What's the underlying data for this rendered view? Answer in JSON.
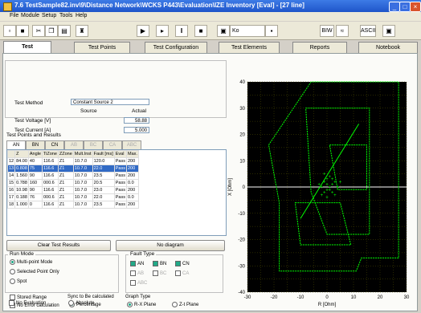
{
  "window": {
    "title": "7.6 TestSample82.inv\\9\\Distance Network\\WCKS P443\\Evaluation\\IZE Inventory [Eval] - [27 line]"
  },
  "menu": [
    "File",
    "Module",
    "Setup",
    "Tools",
    "Help"
  ],
  "toolbar": {
    "combo_value": "Ko",
    "mode_text": "BIW",
    "ascii_text": "ASCII"
  },
  "tabs": [
    "Test",
    "Test Points",
    "Test Configuration",
    "Test Elements",
    "Reports",
    "Notebook"
  ],
  "test_method": {
    "label": "Test Method",
    "value": "Constant Source 2",
    "col_source": "Source",
    "col_actual": "Actual"
  },
  "fields": [
    {
      "label": "Test Voltage [V]",
      "value": "58.88"
    },
    {
      "label": "Test Current [A]",
      "value": "5.000"
    }
  ],
  "points": {
    "group_title": "Test Points and Results",
    "tabs": [
      "AN",
      "BN",
      "CN",
      "AB",
      "BC",
      "CA",
      "ABC"
    ],
    "columns": [
      "",
      "Z",
      "Angle",
      "TiZone",
      "ZZone",
      "Mult.Inst",
      "Fault [ms]",
      "Eval",
      "Max."
    ],
    "rows": [
      [
        "12",
        "84.00",
        "40",
        "116.6",
        "Z1",
        "10.7.0",
        "120.0",
        "Pass",
        "200"
      ],
      [
        "13",
        "0.808",
        "75",
        "116.6",
        "Z1",
        "10.7.0",
        "22.0",
        "Pass",
        "200"
      ],
      [
        "14",
        "1.560",
        "90",
        "116.6",
        "Z1",
        "10.7.0",
        "23.5",
        "Pass",
        "200"
      ],
      [
        "15",
        "0.788",
        "160",
        "000.6",
        "Z1",
        "10.7.0",
        "20.5",
        "Pass",
        "0.0"
      ],
      [
        "16",
        "10.98",
        "90",
        "116.6",
        "Z1",
        "10.7.0",
        "23.0",
        "Pass",
        "200"
      ],
      [
        "17",
        "0.188",
        "76",
        "000.6",
        "Z1",
        "10.7.0",
        "22.0",
        "Pass",
        "0.0"
      ],
      [
        "18",
        "1.000",
        "0",
        "116.6",
        "Z1",
        "10.7.0",
        "23.5",
        "Pass",
        "200"
      ]
    ],
    "selected_row": 1
  },
  "buttons": {
    "clear": "Clear Test Results",
    "no_diagram": "No diagram"
  },
  "run_mode": {
    "title": "Run Mode",
    "options": [
      "Multi-point Mode",
      "Selected Point Only",
      "Spot"
    ],
    "selected": 0
  },
  "fault_type": {
    "title": "Fault Type",
    "options": [
      "AN",
      "BN",
      "CN",
      "AB",
      "BC",
      "CA",
      "ABC"
    ]
  },
  "checks": [
    "Stored Range",
    "No Error calculation",
    "No Evaluation"
  ],
  "z_calc": {
    "title": "Sync to Be calculated",
    "options": [
      "Percentage",
      "Absolute"
    ]
  },
  "graph_type": {
    "title": "Graph Type",
    "options": [
      "R-X Plane",
      "Z-t Plane"
    ]
  },
  "chart_data": {
    "type": "scatter",
    "xlabel": "R [Ohm]",
    "ylabel": "X [Ohm]",
    "xlim": [
      -30,
      30
    ],
    "ylim": [
      -40,
      40
    ],
    "xticks": [
      "-30",
      "-20",
      "-10",
      "0",
      "10",
      "20",
      "30"
    ],
    "yticks": [
      "40",
      "30",
      "20",
      "10",
      "0",
      "-10",
      "-20",
      "-30",
      "-40"
    ],
    "grid": true,
    "zones": [
      {
        "name": "zone-outer",
        "points": [
          [
            -22,
            16
          ],
          [
            -6,
            40
          ],
          [
            27,
            40
          ],
          [
            27,
            -27
          ],
          [
            13,
            -27
          ],
          [
            11,
            -32
          ],
          [
            -18,
            -32
          ],
          [
            -18,
            -6
          ]
        ]
      },
      {
        "name": "zone-mid",
        "points": [
          [
            -8,
            30
          ],
          [
            16,
            30
          ],
          [
            16,
            -18
          ],
          [
            0,
            -18
          ],
          [
            -6,
            -2
          ]
        ]
      },
      {
        "name": "zone-inner",
        "points": [
          [
            1,
            16
          ],
          [
            15,
            16
          ],
          [
            15,
            -1
          ],
          [
            4,
            -1
          ]
        ]
      },
      {
        "name": "zone-lower",
        "points": [
          [
            -12,
            -6
          ],
          [
            5,
            -6
          ],
          [
            9,
            -22
          ],
          [
            -10,
            -22
          ]
        ]
      }
    ],
    "line": [
      [
        -10,
        -12
      ],
      [
        12,
        24
      ]
    ],
    "points": [
      [
        -2,
        0
      ],
      [
        -1,
        2
      ],
      [
        0,
        1
      ],
      [
        1,
        -1
      ],
      [
        2,
        1
      ],
      [
        -1,
        -2
      ],
      [
        0,
        3
      ],
      [
        1,
        4
      ],
      [
        -2,
        -3
      ],
      [
        3,
        2
      ],
      [
        2,
        -2
      ],
      [
        0,
        -1
      ],
      [
        -3,
        1
      ],
      [
        1,
        0
      ],
      [
        2,
        3
      ],
      [
        4,
        0
      ],
      [
        -1,
        5
      ],
      [
        3,
        -3
      ],
      [
        0,
        -4
      ],
      [
        5,
        2
      ]
    ],
    "colors": {
      "background": "#000000",
      "grid": "#505000",
      "trace": "#00ff00",
      "line": "#ffffff"
    }
  }
}
